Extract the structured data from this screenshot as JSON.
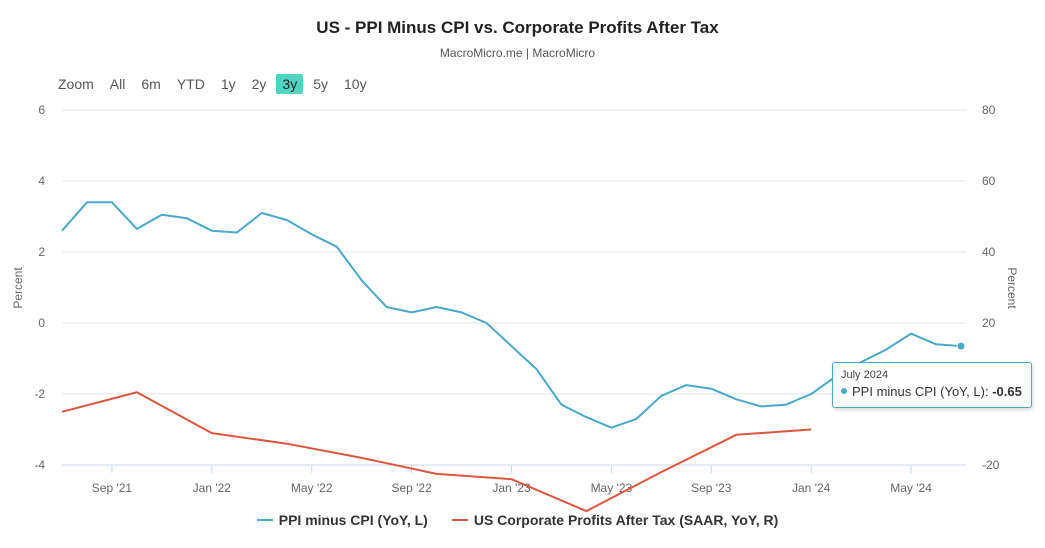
{
  "title": "US - PPI Minus CPI vs. Corporate Profits After Tax",
  "subtitle": "MacroMicro.me | MacroMicro",
  "zoom": {
    "label": "Zoom",
    "buttons": [
      "All",
      "6m",
      "YTD",
      "1y",
      "2y",
      "3y",
      "5y",
      "10y"
    ],
    "active": "3y"
  },
  "tooltip": {
    "date": "July 2024",
    "label": "PPI minus CPI (YoY, L): ",
    "value": "-0.65"
  },
  "colors": {
    "ppi": "#4aa8c8",
    "profits": "#d9573f",
    "grid": "#e6e6e6",
    "active": "#4fd5c1"
  },
  "chart_data": {
    "type": "line",
    "title": "US - PPI Minus CPI vs. Corporate Profits After Tax",
    "y_left": {
      "label": "Percent",
      "lim": [
        -4,
        6
      ],
      "ticks": [
        -4,
        -2,
        0,
        2,
        4,
        6
      ]
    },
    "y_right": {
      "label": "Percent",
      "lim": [
        -20,
        80
      ],
      "ticks": [
        -20,
        0,
        20,
        40,
        60,
        80
      ]
    },
    "x_range": [
      "2021-06",
      "2024-09"
    ],
    "x_ticks": [
      {
        "label": "Sep '21",
        "t": 3
      },
      {
        "label": "Jan '22",
        "t": 7
      },
      {
        "label": "May '22",
        "t": 11
      },
      {
        "label": "Sep '22",
        "t": 15
      },
      {
        "label": "Jan '23",
        "t": 19
      },
      {
        "label": "May '23",
        "t": 23
      },
      {
        "label": "Sep '23",
        "t": 27
      },
      {
        "label": "Jan '24",
        "t": 31
      },
      {
        "label": "May '24",
        "t": 35
      }
    ],
    "x_extent": [
      1,
      37.2
    ],
    "series": [
      {
        "name": "PPI minus CPI (YoY, L)",
        "axis": "left",
        "color": "#4aa8c8",
        "x": [
          1,
          2,
          3,
          4,
          5,
          6,
          7,
          8,
          9,
          10,
          11,
          12,
          13,
          14,
          15,
          16,
          17,
          18,
          19,
          20,
          21,
          22,
          23,
          24,
          25,
          26,
          27,
          28,
          29,
          30,
          31,
          32,
          33,
          34,
          35,
          36,
          37
        ],
        "values": [
          2.6,
          3.4,
          3.4,
          2.65,
          3.05,
          2.95,
          2.6,
          2.55,
          3.1,
          2.9,
          2.5,
          2.15,
          1.2,
          0.45,
          0.3,
          0.45,
          0.3,
          0.0,
          -0.65,
          -1.3,
          -2.3,
          -2.65,
          -2.95,
          -2.7,
          -2.05,
          -1.75,
          -1.85,
          -2.15,
          -2.35,
          -2.3,
          -2.0,
          -1.5,
          -1.1,
          -0.75,
          -0.3,
          -0.6,
          -0.65
        ]
      },
      {
        "name": "US Corporate Profits After Tax (SAAR, YoY, R)",
        "axis": "right",
        "color": "#d9573f",
        "x": [
          1,
          4,
          7,
          10,
          13,
          16,
          19,
          22,
          25,
          28,
          31
        ],
        "values": [
          -5.0,
          0.5,
          -11.0,
          -14.0,
          -18.0,
          -22.5,
          -24.0,
          -33.0,
          -22.0,
          -11.5,
          -10.0
        ]
      }
    ],
    "legend": [
      "PPI minus CPI (YoY, L)",
      "US Corporate Profits After Tax (SAAR, YoY, R)"
    ]
  }
}
